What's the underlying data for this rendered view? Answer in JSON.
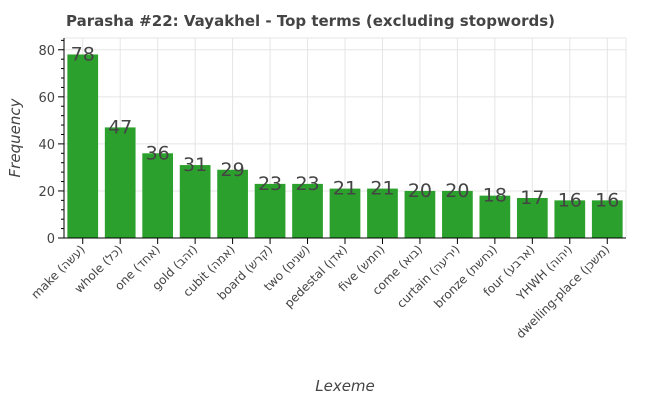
{
  "chart_data": {
    "type": "bar",
    "title": "Parasha #22: Vayakhel - Top terms (excluding stopwords)",
    "xlabel": "Lexeme",
    "ylabel": "Frequency",
    "categories": [
      "make (עשה)",
      "whole (כל)",
      "one (אחד)",
      "gold (זהב)",
      "cubit (אמה)",
      "board (קרש)",
      "two (שׁנים)",
      "pedestal (אדן)",
      "five (חמש)",
      "come (בוא)",
      "curtain (יריעה)",
      "bronze (נחשת)",
      "four (ארבע)",
      "YHWH (יהוה)",
      "dwelling-place (משכן)"
    ],
    "values": [
      78,
      47,
      36,
      31,
      29,
      23,
      23,
      21,
      21,
      20,
      20,
      18,
      17,
      16,
      16
    ],
    "ylim": [
      0,
      85
    ],
    "yticks": [
      0,
      20,
      40,
      60,
      80
    ],
    "grid": true,
    "bar_color": "#2ca02c"
  }
}
